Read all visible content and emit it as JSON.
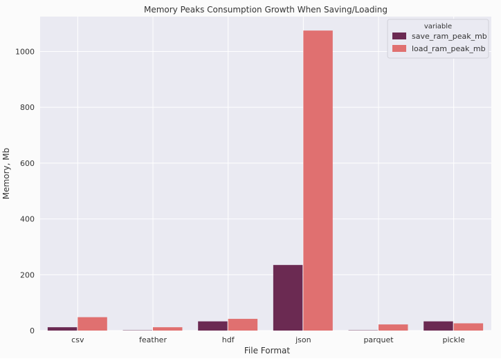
{
  "chart_data": {
    "type": "bar",
    "title": "Memory Peaks Consumption Growth When Saving/Loading",
    "xlabel": "File Format",
    "ylabel": "Memory, Mb",
    "categories": [
      "csv",
      "feather",
      "hdf",
      "json",
      "parquet",
      "pickle"
    ],
    "series": [
      {
        "name": "save_ram_peak_mb",
        "color": "#6b2a52",
        "values": [
          12,
          1,
          33,
          235,
          1,
          33
        ]
      },
      {
        "name": "load_ram_peak_mb",
        "color": "#e07070",
        "values": [
          48,
          12,
          42,
          1075,
          22,
          26
        ]
      }
    ],
    "ylim": [
      0,
      1125
    ],
    "yticks": [
      0,
      200,
      400,
      600,
      800,
      1000
    ],
    "grid": true,
    "legend": {
      "title": "variable",
      "placement": "top-right"
    },
    "colors": {
      "plot_background": "#eaeaf2",
      "grid": "#ffffff"
    }
  }
}
